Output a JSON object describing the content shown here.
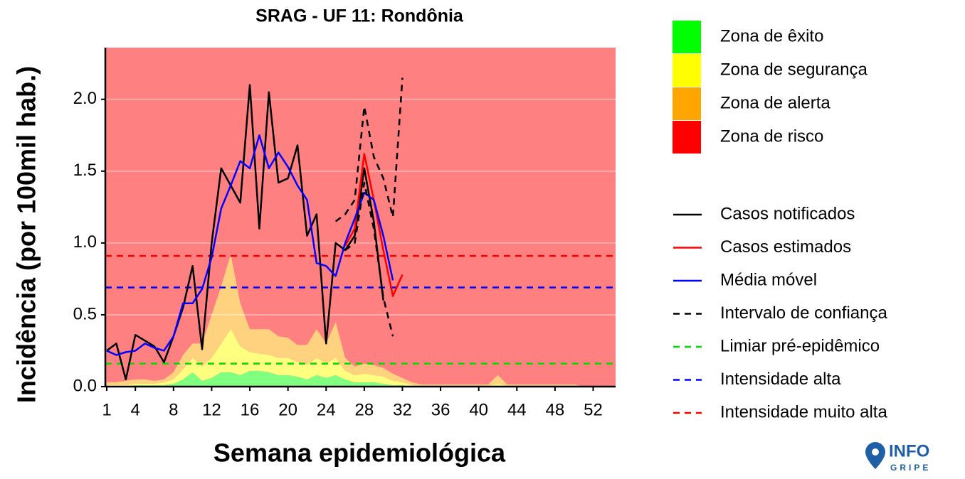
{
  "chart_data": {
    "type": "line",
    "title": "SRAG - UF 11: Rondônia",
    "x_label": "Semana epidemiológica",
    "y_label": "Incidência (por 100mil hab.)",
    "xlim": [
      0.85,
      54.35
    ],
    "ylim": [
      0,
      2.36
    ],
    "xticks": [
      1,
      4,
      8,
      12,
      16,
      20,
      24,
      28,
      32,
      36,
      40,
      44,
      48,
      52
    ],
    "yticks": [
      {
        "value": 0,
        "label": "0.0"
      },
      0.5,
      {
        "value": 1,
        "label": "1.0"
      },
      1.5,
      {
        "value": 2,
        "label": "2.0"
      }
    ],
    "grid": true,
    "x": [
      1,
      2,
      3,
      4,
      5,
      6,
      7,
      8,
      9,
      10,
      11,
      12,
      13,
      14,
      15,
      16,
      17,
      18,
      19,
      20,
      21,
      22,
      23,
      24,
      25,
      26,
      27,
      28,
      29,
      30,
      31,
      32,
      33,
      34,
      35,
      36,
      37,
      38,
      39,
      40,
      41,
      42,
      43,
      44,
      45,
      46,
      47,
      48,
      49,
      50,
      51,
      52
    ],
    "zones": [
      {
        "name": "Zona de êxito",
        "color": "#00ff00",
        "values": [
          0,
          0,
          0,
          0.01,
          0.01,
          0.01,
          0.01,
          0.02,
          0.05,
          0.1,
          0.04,
          0.06,
          0.1,
          0.1,
          0.08,
          0.11,
          0.11,
          0.1,
          0.08,
          0.08,
          0.07,
          0.05,
          0.08,
          0.06,
          0.08,
          0.05,
          0.03,
          0.03,
          0.03,
          0.02,
          0.01,
          0.01,
          0,
          0,
          0,
          0,
          0,
          0,
          0,
          0,
          0,
          0,
          0,
          0,
          0,
          0,
          0,
          0,
          0,
          0,
          0,
          0
        ]
      },
      {
        "name": "Zona de segurança",
        "color": "#ffff00",
        "values": [
          0.01,
          0.01,
          0.01,
          0.01,
          0.01,
          0.01,
          0.02,
          0.03,
          0.07,
          0.1,
          0.1,
          0.14,
          0.2,
          0.3,
          0.2,
          0.13,
          0.12,
          0.12,
          0.12,
          0.12,
          0.1,
          0.1,
          0.12,
          0.1,
          0.12,
          0.06,
          0.05,
          0.06,
          0.05,
          0.05,
          0.03,
          0.02,
          0.01,
          0.005,
          0.005,
          0.005,
          0.005,
          0.005,
          0.005,
          0.005,
          0.005,
          0.02,
          0.005,
          0.005,
          0.005,
          0.005,
          0.005,
          0.005,
          0.005,
          0.005,
          0,
          0
        ]
      },
      {
        "name": "Zona de alerta",
        "color": "#ffa500",
        "values": [
          0.02,
          0.02,
          0.03,
          0.03,
          0.03,
          0.02,
          0.02,
          0.05,
          0.1,
          0.1,
          0.16,
          0.3,
          0.4,
          0.52,
          0.3,
          0.16,
          0.17,
          0.18,
          0.15,
          0.14,
          0.12,
          0.14,
          0.2,
          0.14,
          0.25,
          0.09,
          0.06,
          0.07,
          0.07,
          0.06,
          0.05,
          0.03,
          0.02,
          0.01,
          0.01,
          0.01,
          0.01,
          0.01,
          0.01,
          0.01,
          0.01,
          0.06,
          0.01,
          0.01,
          0.01,
          0.01,
          0.01,
          0.01,
          0.01,
          0.01,
          0,
          0
        ]
      },
      {
        "name": "Zona de risco",
        "color": "#ff0000"
      }
    ],
    "series": [
      {
        "name": "Casos notificados",
        "color": "#000000",
        "dash": false,
        "values": [
          0.25,
          0.3,
          0.05,
          0.36,
          0.32,
          0.28,
          0.17,
          0.35,
          0.55,
          0.84,
          0.26,
          1.0,
          1.52,
          1.4,
          1.28,
          2.1,
          1.1,
          2.05,
          1.42,
          1.45,
          1.68,
          1.05,
          1.2,
          0.3,
          1.0,
          0.95,
          1.05,
          1.52,
          1.15,
          0.6,
          null,
          null,
          null,
          null,
          null,
          null,
          null,
          null,
          null,
          null,
          null,
          null,
          null,
          null,
          null,
          null,
          null,
          null,
          null,
          null,
          null,
          null
        ]
      },
      {
        "name": "Casos estimados",
        "color": "#ff0000",
        "dash": false,
        "values": [
          null,
          null,
          null,
          null,
          null,
          null,
          null,
          null,
          null,
          null,
          null,
          null,
          null,
          null,
          null,
          null,
          null,
          null,
          null,
          null,
          null,
          null,
          null,
          null,
          null,
          0.98,
          1.1,
          1.62,
          1.3,
          0.95,
          0.63,
          0.78,
          null,
          null,
          null,
          null,
          null,
          null,
          null,
          null,
          null,
          null,
          null,
          null,
          null,
          null,
          null,
          null,
          null,
          null,
          null,
          null
        ]
      },
      {
        "name": "Média móvel",
        "color": "#0000ff",
        "dash": false,
        "values": [
          0.25,
          0.22,
          0.24,
          0.25,
          0.3,
          0.27,
          0.25,
          0.35,
          0.58,
          0.58,
          0.68,
          0.9,
          1.24,
          1.4,
          1.57,
          1.52,
          1.75,
          1.52,
          1.63,
          1.53,
          1.4,
          1.3,
          0.86,
          0.84,
          0.77,
          1.0,
          1.17,
          1.35,
          1.3,
          1.05,
          0.74,
          null,
          null,
          null,
          null,
          null,
          null,
          null,
          null,
          null,
          null,
          null,
          null,
          null,
          null,
          null,
          null,
          null,
          null,
          null,
          null,
          null
        ]
      },
      {
        "name": "Intervalo de confiança",
        "color": "#000000",
        "dash": true,
        "upper": [
          null,
          null,
          null,
          null,
          null,
          null,
          null,
          null,
          null,
          null,
          null,
          null,
          null,
          null,
          null,
          null,
          null,
          null,
          null,
          null,
          null,
          null,
          null,
          null,
          1.15,
          1.2,
          1.3,
          1.95,
          1.6,
          1.45,
          1.18,
          2.15,
          null,
          null,
          null,
          null,
          null,
          null,
          null,
          null,
          null,
          null,
          null,
          null,
          null,
          null,
          null,
          null,
          null,
          null,
          null,
          null
        ],
        "lower": [
          null,
          null,
          null,
          null,
          null,
          null,
          null,
          null,
          null,
          null,
          null,
          null,
          null,
          null,
          null,
          null,
          null,
          null,
          null,
          null,
          null,
          null,
          null,
          null,
          null,
          0.95,
          1.0,
          1.42,
          1.1,
          0.62,
          0.35,
          null,
          null,
          null,
          null,
          null,
          null,
          null,
          null,
          null,
          null,
          null,
          null,
          null,
          null,
          null,
          null,
          null,
          null,
          null,
          null,
          null
        ]
      }
    ],
    "thresholds": [
      {
        "name": "Limiar pré-epidêmico",
        "color": "#00dd00",
        "value": 0.16
      },
      {
        "name": "Intensidade alta",
        "color": "#0000ff",
        "value": 0.69
      },
      {
        "name": "Intensidade muito alta",
        "color": "#ff0000",
        "value": 0.91
      }
    ]
  },
  "logo": {
    "top": "INFO",
    "bottom": "GRIPE"
  }
}
